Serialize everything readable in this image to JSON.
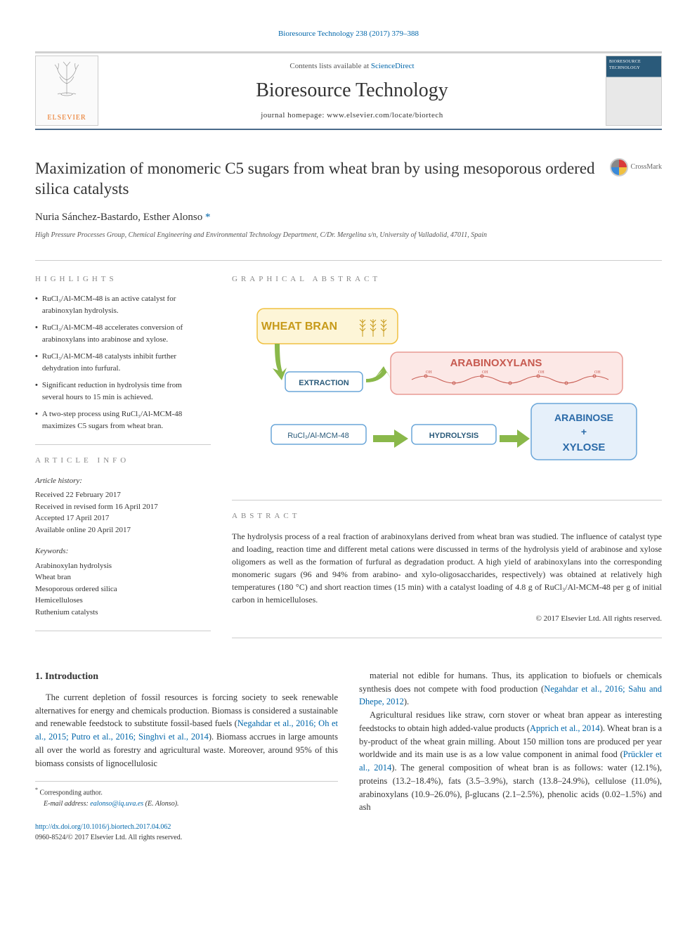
{
  "topLink": {
    "text": "Bioresource Technology 238 (2017) 379–388",
    "href": "#"
  },
  "header": {
    "contentsPrefix": "Contents lists available at ",
    "contentsLink": "ScienceDirect",
    "journalName": "Bioresource Technology",
    "homepage": "journal homepage: www.elsevier.com/locate/biortech",
    "publisherName": "ELSEVIER",
    "coverTitle": "BIORESOURCE TECHNOLOGY"
  },
  "crossmark": "CrossMark",
  "article": {
    "title": "Maximization of monomeric C5 sugars from wheat bran by using mesoporous ordered silica catalysts",
    "authors": "Nuria Sánchez-Bastardo, Esther Alonso",
    "corrMark": "*",
    "affiliation": "High Pressure Processes Group, Chemical Engineering and Environmental Technology Department, C/Dr. Mergelina s/n, University of Valladolid, 47011, Spain"
  },
  "highlights": {
    "heading": "HIGHLIGHTS",
    "items": [
      "RuCl₃/Al-MCM-48 is an active catalyst for arabinoxylan hydrolysis.",
      "RuCl₃/Al-MCM-48 accelerates conversion of arabinoxylans into arabinose and xylose.",
      "RuCl₃/Al-MCM-48 catalysts inhibit further dehydration into furfural.",
      "Significant reduction in hydrolysis time from several hours to 15 min is achieved.",
      "A two-step process using RuCl₃/Al-MCM-48 maximizes C5 sugars from wheat bran."
    ]
  },
  "articleInfo": {
    "heading": "ARTICLE INFO",
    "historyLabel": "Article history:",
    "history": [
      "Received 22 February 2017",
      "Received in revised form 16 April 2017",
      "Accepted 17 April 2017",
      "Available online 20 April 2017"
    ],
    "keywordsLabel": "Keywords:",
    "keywords": [
      "Arabinoxylan hydrolysis",
      "Wheat bran",
      "Mesoporous ordered silica",
      "Hemicelluloses",
      "Ruthenium catalysts"
    ]
  },
  "graphicalAbstract": {
    "heading": "GRAPHICAL ABSTRACT",
    "boxes": {
      "wheatBran": {
        "label": "WHEAT BRAN",
        "fill": "#fdf5d7",
        "stroke": "#f0c040",
        "text": "#c79a1a"
      },
      "arabinoxylans": {
        "label": "ARABINOXYLANS",
        "fill": "#fce8e6",
        "stroke": "#e89a94",
        "text": "#c75a50"
      },
      "arabXyl": {
        "label1": "ARABINOSE",
        "plus": "+",
        "label2": "XYLOSE",
        "fill": "#e6f0fa",
        "stroke": "#6aa6d9",
        "text": "#2a6aa8"
      },
      "extraction": {
        "label": "EXTRACTION",
        "fill": "#ffffff",
        "stroke": "#6aa6d9",
        "text": "#2a5a7a"
      },
      "catalyst": {
        "label": "RuCl₃/Al-MCM-48",
        "fill": "#ffffff",
        "stroke": "#6aa6d9",
        "text": "#2a5a7a"
      },
      "hydrolysis": {
        "label": "HYDROLYSIS",
        "fill": "#ffffff",
        "stroke": "#6aa6d9",
        "text": "#2a5a7a"
      }
    },
    "arrowColor": "#8ab84a"
  },
  "abstract": {
    "heading": "ABSTRACT",
    "text": "The hydrolysis process of a real fraction of arabinoxylans derived from wheat bran was studied. The influence of catalyst type and loading, reaction time and different metal cations were discussed in terms of the hydrolysis yield of arabinose and xylose oligomers as well as the formation of furfural as degradation product. A high yield of arabinoxylans into the corresponding monomeric sugars (96 and 94% from arabino- and xylo-oligosaccharides, respectively) was obtained at relatively high temperatures (180 °C) and short reaction times (15 min) with a catalyst loading of 4.8 g of RuCl₃/Al-MCM-48 per g of initial carbon in hemicelluloses.",
    "copyright": "© 2017 Elsevier Ltd. All rights reserved."
  },
  "body": {
    "introHeading": "1. Introduction",
    "col1p1a": "The current depletion of fossil resources is forcing society to seek renewable alternatives for energy and chemicals production. Biomass is considered a sustainable and renewable feedstock to substitute fossil-based fuels (",
    "col1cite1": "Negahdar et al., 2016; Oh et al., 2015; Putro et al., 2016; Singhvi et al., 2014",
    "col1p1b": "). Biomass accrues in large amounts all over the world as forestry and agricultural waste. Moreover, around 95% of this biomass consists of lignocellulosic",
    "col2p1a": "material not edible for humans. Thus, its application to biofuels or chemicals synthesis does not compete with food production (",
    "col2cite1": "Negahdar et al., 2016; Sahu and Dhepe, 2012",
    "col2p1b": ").",
    "col2p2a": "Agricultural residues like straw, corn stover or wheat bran appear as interesting feedstocks to obtain high added-value products (",
    "col2cite2": "Apprich et al., 2014",
    "col2p2b": "). Wheat bran is a by-product of the wheat grain milling. About 150 million tons are produced per year worldwide and its main use is as a low value component in animal food (",
    "col2cite3": "Prückler et al., 2014",
    "col2p2c": "). The general composition of wheat bran is as follows: water (12.1%), proteins (13.2–18.4%), fats (3.5–3.9%), starch (13.8–24.9%), cellulose (11.0%), arabinoxylans (10.9–26.0%), β-glucans (2.1–2.5%), phenolic acids (0.02–1.5%) and ash"
  },
  "footnotes": {
    "corr": "Corresponding author.",
    "emailLabel": "E-mail address: ",
    "email": "ealonso@iq.uva.es",
    "emailSuffix": " (E. Alonso)."
  },
  "doi": {
    "url": "http://dx.doi.org/10.1016/j.biortech.2017.04.062",
    "issn": "0960-8524/© 2017 Elsevier Ltd. All rights reserved."
  }
}
